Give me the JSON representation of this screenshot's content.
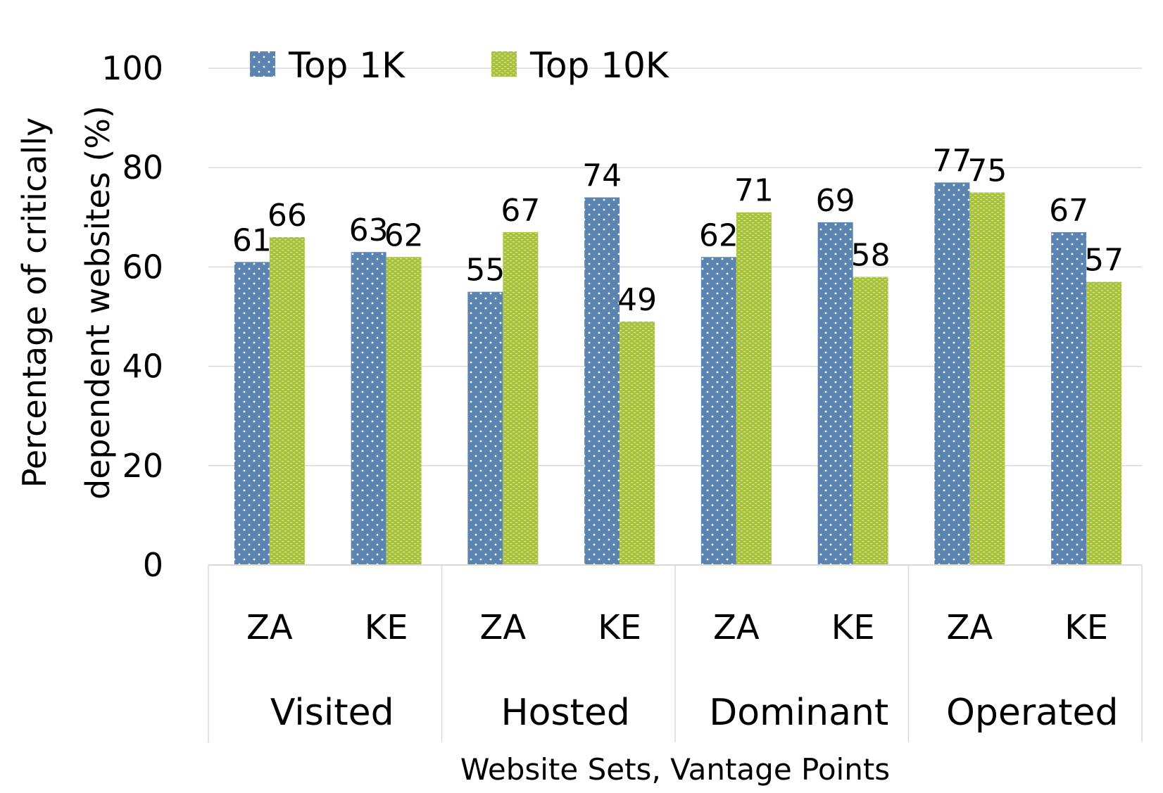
{
  "chart_data": {
    "type": "bar",
    "xlabel": "Website Sets, Vantage Points",
    "ylabel_lines": [
      "Percentage of critically",
      "dependent websites (%)"
    ],
    "ylim": [
      0,
      100
    ],
    "yticks": [
      0,
      20,
      40,
      60,
      80,
      100
    ],
    "grid": true,
    "legend_position": "top",
    "groups": [
      {
        "name": "Visited",
        "vantage_points": [
          "ZA",
          "KE"
        ]
      },
      {
        "name": "Hosted",
        "vantage_points": [
          "ZA",
          "KE"
        ]
      },
      {
        "name": "Dominant",
        "vantage_points": [
          "ZA",
          "KE"
        ]
      },
      {
        "name": "Operated",
        "vantage_points": [
          "ZA",
          "KE"
        ]
      }
    ],
    "series": [
      {
        "name": "Top 1K",
        "color": "#5b84b1",
        "values": [
          61,
          63,
          55,
          74,
          62,
          69,
          77,
          67
        ]
      },
      {
        "name": "Top 10K",
        "color": "#a8c23a",
        "values": [
          66,
          62,
          67,
          49,
          71,
          58,
          75,
          57
        ]
      }
    ]
  }
}
